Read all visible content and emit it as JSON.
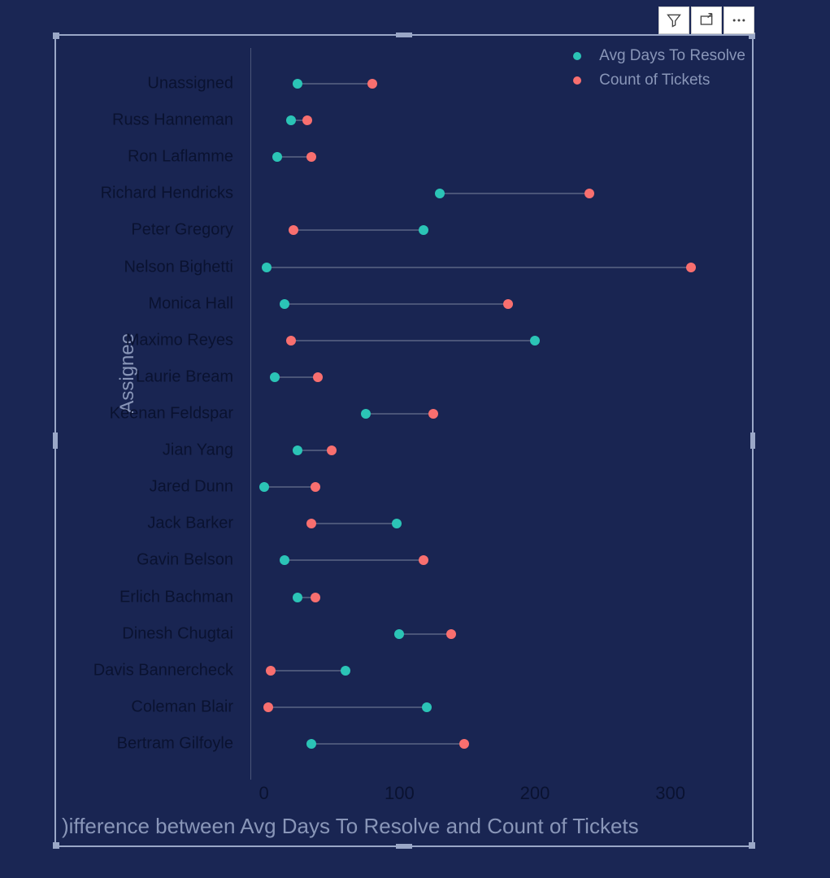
{
  "toolbar": {
    "filter_label": "Filter",
    "focus_label": "Focus mode",
    "more_label": "More options"
  },
  "chart": {
    "type": "dumbbell",
    "background_color": "#192552",
    "page_background": "#1a2654",
    "axis_text_color": "#0a1230",
    "muted_text_color": "#8996b8",
    "connector_color": "#4a5578",
    "y_axis_title": "Assignee",
    "x_axis_title": ")ifference between Avg Days To Resolve and Count of Tickets",
    "x_ticks": [
      0,
      100,
      200,
      300
    ],
    "xlim": [
      -10,
      350
    ],
    "legend": [
      {
        "label": "Avg Days To Resolve",
        "color": "#2bc4b6"
      },
      {
        "label": "Count of Tickets",
        "color": "#f86f6f"
      }
    ],
    "series_colors": {
      "avg": "#2bc4b6",
      "count": "#f86f6f"
    },
    "dot_radius": 6,
    "label_fontsize": 20,
    "tick_fontsize": 22,
    "title_fontsize": 26,
    "legend_fontsize": 19,
    "rows": [
      {
        "label": "Unassigned",
        "avg": 25,
        "count": 80
      },
      {
        "label": "Russ Hanneman",
        "avg": 20,
        "count": 32
      },
      {
        "label": "Ron Laflamme",
        "avg": 10,
        "count": 35
      },
      {
        "label": "Richard Hendricks",
        "avg": 130,
        "count": 240
      },
      {
        "label": "Peter Gregory",
        "avg": 118,
        "count": 22
      },
      {
        "label": "Nelson Bighetti",
        "avg": 2,
        "count": 315
      },
      {
        "label": "Monica Hall",
        "avg": 15,
        "count": 180
      },
      {
        "label": "Maximo Reyes",
        "avg": 200,
        "count": 20
      },
      {
        "label": "Laurie Bream",
        "avg": 8,
        "count": 40
      },
      {
        "label": "Keenan Feldspar",
        "avg": 75,
        "count": 125
      },
      {
        "label": "Jian Yang",
        "avg": 25,
        "count": 50
      },
      {
        "label": "Jared Dunn",
        "avg": 0,
        "count": 38
      },
      {
        "label": "Jack Barker",
        "avg": 98,
        "count": 35
      },
      {
        "label": "Gavin Belson",
        "avg": 15,
        "count": 118
      },
      {
        "label": "Erlich Bachman",
        "avg": 25,
        "count": 38
      },
      {
        "label": "Dinesh Chugtai",
        "avg": 100,
        "count": 138
      },
      {
        "label": "Davis Bannercheck",
        "avg": 60,
        "count": 5
      },
      {
        "label": "Coleman Blair",
        "avg": 120,
        "count": 3
      },
      {
        "label": "Bertram Gilfoyle",
        "avg": 35,
        "count": 148
      }
    ]
  }
}
